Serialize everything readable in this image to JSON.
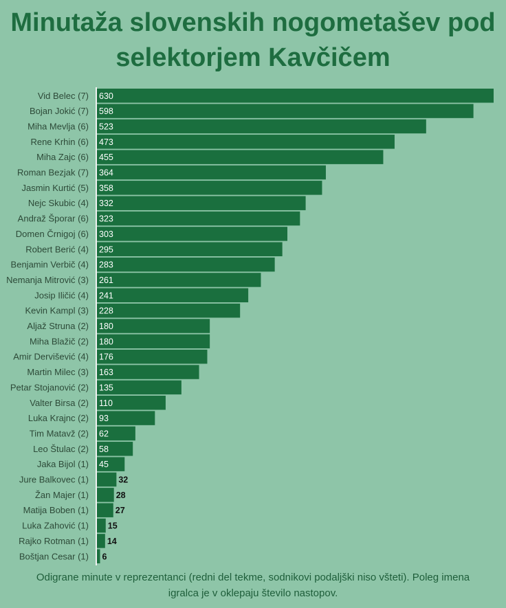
{
  "chart_data": {
    "type": "bar",
    "orientation": "horizontal",
    "title": "Minutaža slovenskih nogometašev pod selektorjem Kavčičem",
    "categories": [
      "Vid Belec (7)",
      "Bojan Jokić (7)",
      "Miha Mevlja (6)",
      "Rene Krhin (6)",
      "Miha Zajc (6)",
      "Roman Bezjak (7)",
      "Jasmin Kurtić (5)",
      "Nejc Skubic (4)",
      "Andraž Šporar (6)",
      "Domen Črnigoj (6)",
      "Robert Berić (4)",
      "Benjamin Verbič (4)",
      "Nemanja Mitrović (3)",
      "Josip Iličić (4)",
      "Kevin Kampl (3)",
      "Aljaž Struna (2)",
      "Miha Blažič (2)",
      "Amir Dervišević (4)",
      "Martin Milec (3)",
      "Petar Stojanović (2)",
      "Valter Birsa (2)",
      "Luka Krajnc (2)",
      "Tim Matavž (2)",
      "Leo Štulac (2)",
      "Jaka Bijol (1)",
      "Jure Balkovec (1)",
      "Žan Majer (1)",
      "Matija Boben (1)",
      "Luka Zahović (1)",
      "Rajko Rotman (1)",
      "Boštjan Cesar (1)"
    ],
    "values": [
      630,
      598,
      523,
      473,
      455,
      364,
      358,
      332,
      323,
      303,
      295,
      283,
      261,
      241,
      228,
      180,
      180,
      176,
      163,
      135,
      110,
      93,
      62,
      58,
      45,
      32,
      28,
      27,
      15,
      14,
      6
    ],
    "xlim": [
      0,
      630
    ],
    "grid": false,
    "legend": "none",
    "data_labels": true,
    "caption": "Odigrane minute v reprezentanci (redni del tekme, sodnikovi podaljški niso všteti). Poleg imena igralca je v oklepaju število nastopov."
  },
  "colors": {
    "background": "#8ec5a8",
    "bar": "#1a6f3e",
    "title": "#1e6d40",
    "label_inside": "#ffffff",
    "label_outside": "#111111",
    "category_label": "#2d4a38",
    "axis_line": "#f2f2f2"
  }
}
